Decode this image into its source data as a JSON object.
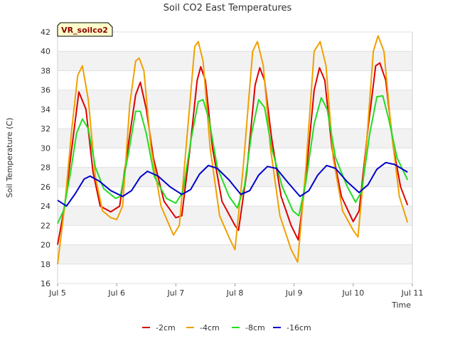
{
  "chart_data": {
    "type": "line",
    "title": "Soil CO2 East Temperatures",
    "xlabel": "Time",
    "ylabel": "Soil Temperature (C)",
    "badge": "VR_soilco2",
    "ylim": [
      16,
      42
    ],
    "yticks": [
      16,
      18,
      20,
      22,
      24,
      26,
      28,
      30,
      32,
      34,
      36,
      38,
      40,
      42
    ],
    "xlim": [
      0,
      6
    ],
    "xticks": [
      {
        "pos": 0,
        "label": "Jul 5"
      },
      {
        "pos": 1,
        "label": "Jul 6"
      },
      {
        "pos": 2,
        "label": "Jul 7"
      },
      {
        "pos": 3,
        "label": "Jul 8"
      },
      {
        "pos": 4,
        "label": "Jul 9"
      },
      {
        "pos": 5,
        "label": "Jul 10"
      },
      {
        "pos": 6,
        "label": "Jul 11"
      }
    ],
    "series": [
      {
        "name": "-2cm",
        "color": "#dd0000",
        "points": [
          [
            0.0,
            20.0
          ],
          [
            0.12,
            24.0
          ],
          [
            0.24,
            30.0
          ],
          [
            0.36,
            35.8
          ],
          [
            0.48,
            34.0
          ],
          [
            0.6,
            27.5
          ],
          [
            0.72,
            24.0
          ],
          [
            0.9,
            23.4
          ],
          [
            1.05,
            24.0
          ],
          [
            1.2,
            30.5
          ],
          [
            1.32,
            35.5
          ],
          [
            1.4,
            36.8
          ],
          [
            1.5,
            34.0
          ],
          [
            1.62,
            29.0
          ],
          [
            1.8,
            24.5
          ],
          [
            2.0,
            22.8
          ],
          [
            2.1,
            23.0
          ],
          [
            2.24,
            30.0
          ],
          [
            2.36,
            37.0
          ],
          [
            2.42,
            38.4
          ],
          [
            2.5,
            37.0
          ],
          [
            2.62,
            30.0
          ],
          [
            2.78,
            24.5
          ],
          [
            3.0,
            22.0
          ],
          [
            3.06,
            21.5
          ],
          [
            3.2,
            27.5
          ],
          [
            3.34,
            36.5
          ],
          [
            3.42,
            38.3
          ],
          [
            3.5,
            37.0
          ],
          [
            3.62,
            31.0
          ],
          [
            3.78,
            25.0
          ],
          [
            3.95,
            22.0
          ],
          [
            4.07,
            20.5
          ],
          [
            4.2,
            27.0
          ],
          [
            4.34,
            36.0
          ],
          [
            4.43,
            38.3
          ],
          [
            4.52,
            37.0
          ],
          [
            4.64,
            30.0
          ],
          [
            4.8,
            25.0
          ],
          [
            5.0,
            22.4
          ],
          [
            5.1,
            23.5
          ],
          [
            5.25,
            32.0
          ],
          [
            5.38,
            38.5
          ],
          [
            5.45,
            38.8
          ],
          [
            5.55,
            37.0
          ],
          [
            5.68,
            30.0
          ],
          [
            5.8,
            26.0
          ],
          [
            5.92,
            24.1
          ]
        ]
      },
      {
        "name": "-4cm",
        "color": "#f0a000",
        "points": [
          [
            0.0,
            18.0
          ],
          [
            0.12,
            24.0
          ],
          [
            0.24,
            32.0
          ],
          [
            0.34,
            37.5
          ],
          [
            0.42,
            38.5
          ],
          [
            0.52,
            35.0
          ],
          [
            0.64,
            27.0
          ],
          [
            0.76,
            23.5
          ],
          [
            0.9,
            22.8
          ],
          [
            1.0,
            22.6
          ],
          [
            1.1,
            24.0
          ],
          [
            1.22,
            34.5
          ],
          [
            1.32,
            39.0
          ],
          [
            1.38,
            39.3
          ],
          [
            1.46,
            38.0
          ],
          [
            1.58,
            30.0
          ],
          [
            1.75,
            24.0
          ],
          [
            1.96,
            21.0
          ],
          [
            2.06,
            22.0
          ],
          [
            2.2,
            32.0
          ],
          [
            2.32,
            40.5
          ],
          [
            2.38,
            41.0
          ],
          [
            2.46,
            39.0
          ],
          [
            2.58,
            30.0
          ],
          [
            2.74,
            23.0
          ],
          [
            2.92,
            20.5
          ],
          [
            3.0,
            19.5
          ],
          [
            3.14,
            28.0
          ],
          [
            3.3,
            40.0
          ],
          [
            3.38,
            41.0
          ],
          [
            3.48,
            38.5
          ],
          [
            3.6,
            30.0
          ],
          [
            3.76,
            23.0
          ],
          [
            3.95,
            19.5
          ],
          [
            4.06,
            18.2
          ],
          [
            4.2,
            28.0
          ],
          [
            4.34,
            40.0
          ],
          [
            4.44,
            41.0
          ],
          [
            4.54,
            38.5
          ],
          [
            4.66,
            29.0
          ],
          [
            4.82,
            23.5
          ],
          [
            5.0,
            21.5
          ],
          [
            5.08,
            20.8
          ],
          [
            5.22,
            30.0
          ],
          [
            5.34,
            40.0
          ],
          [
            5.42,
            41.6
          ],
          [
            5.52,
            40.0
          ],
          [
            5.64,
            32.0
          ],
          [
            5.78,
            25.0
          ],
          [
            5.92,
            22.3
          ]
        ]
      },
      {
        "name": "-8cm",
        "color": "#22dd22",
        "points": [
          [
            0.0,
            22.2
          ],
          [
            0.1,
            23.5
          ],
          [
            0.22,
            27.5
          ],
          [
            0.32,
            31.5
          ],
          [
            0.42,
            33.0
          ],
          [
            0.52,
            32.0
          ],
          [
            0.64,
            28.0
          ],
          [
            0.78,
            25.8
          ],
          [
            0.98,
            24.8
          ],
          [
            1.06,
            25.0
          ],
          [
            1.2,
            29.5
          ],
          [
            1.32,
            33.8
          ],
          [
            1.4,
            33.8
          ],
          [
            1.5,
            31.5
          ],
          [
            1.64,
            27.0
          ],
          [
            1.84,
            24.8
          ],
          [
            2.0,
            24.3
          ],
          [
            2.12,
            25.5
          ],
          [
            2.26,
            31.0
          ],
          [
            2.38,
            34.8
          ],
          [
            2.46,
            35.0
          ],
          [
            2.56,
            33.0
          ],
          [
            2.7,
            28.0
          ],
          [
            2.9,
            25.0
          ],
          [
            3.04,
            23.8
          ],
          [
            3.16,
            26.0
          ],
          [
            3.28,
            31.5
          ],
          [
            3.4,
            35.0
          ],
          [
            3.5,
            34.2
          ],
          [
            3.62,
            30.0
          ],
          [
            3.8,
            26.0
          ],
          [
            3.98,
            23.5
          ],
          [
            4.08,
            23.0
          ],
          [
            4.2,
            26.5
          ],
          [
            4.34,
            32.5
          ],
          [
            4.46,
            35.2
          ],
          [
            4.56,
            34.0
          ],
          [
            4.7,
            29.0
          ],
          [
            4.9,
            26.0
          ],
          [
            5.04,
            24.4
          ],
          [
            5.14,
            25.5
          ],
          [
            5.28,
            31.5
          ],
          [
            5.4,
            35.3
          ],
          [
            5.5,
            35.4
          ],
          [
            5.6,
            33.0
          ],
          [
            5.74,
            29.0
          ],
          [
            5.92,
            26.7
          ]
        ]
      },
      {
        "name": "-16cm",
        "color": "#0000cc",
        "points": [
          [
            0.0,
            24.6
          ],
          [
            0.15,
            24.0
          ],
          [
            0.3,
            25.3
          ],
          [
            0.45,
            26.8
          ],
          [
            0.55,
            27.1
          ],
          [
            0.7,
            26.6
          ],
          [
            0.9,
            25.6
          ],
          [
            1.1,
            25.0
          ],
          [
            1.25,
            25.6
          ],
          [
            1.4,
            27.0
          ],
          [
            1.52,
            27.6
          ],
          [
            1.7,
            27.1
          ],
          [
            1.9,
            26.0
          ],
          [
            2.1,
            25.2
          ],
          [
            2.25,
            25.7
          ],
          [
            2.4,
            27.3
          ],
          [
            2.55,
            28.2
          ],
          [
            2.7,
            27.9
          ],
          [
            2.9,
            26.7
          ],
          [
            3.1,
            25.2
          ],
          [
            3.25,
            25.6
          ],
          [
            3.4,
            27.2
          ],
          [
            3.55,
            28.1
          ],
          [
            3.7,
            27.9
          ],
          [
            3.9,
            26.4
          ],
          [
            4.1,
            25.0
          ],
          [
            4.25,
            25.6
          ],
          [
            4.4,
            27.2
          ],
          [
            4.55,
            28.2
          ],
          [
            4.7,
            27.9
          ],
          [
            4.9,
            26.5
          ],
          [
            5.1,
            25.4
          ],
          [
            5.25,
            26.2
          ],
          [
            5.4,
            27.8
          ],
          [
            5.55,
            28.5
          ],
          [
            5.7,
            28.3
          ],
          [
            5.92,
            27.5
          ]
        ]
      }
    ]
  }
}
